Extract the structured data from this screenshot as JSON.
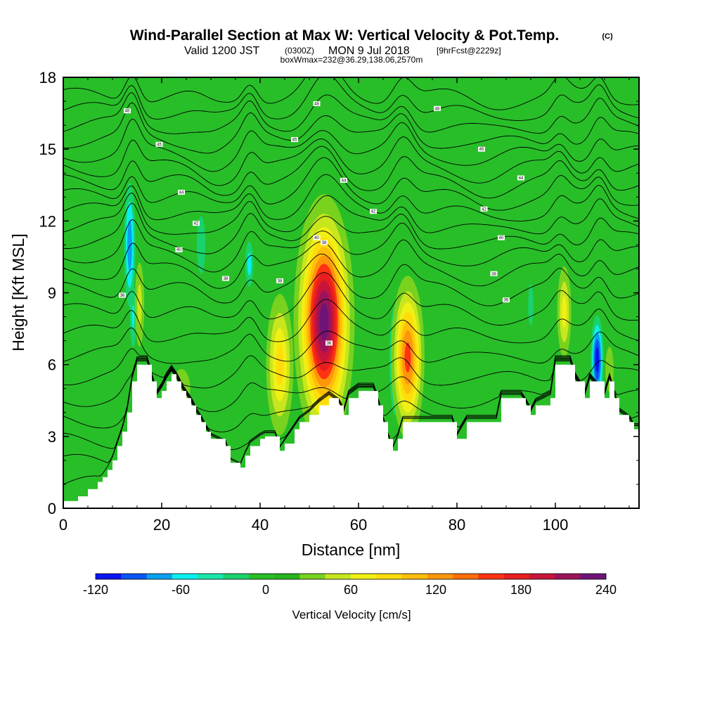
{
  "title": {
    "main": "Wind-Parallel Section at Max W: Vertical Velocity & Pot.Temp.",
    "copyright": "(C)",
    "valid_prefix": "Valid 1200 JST",
    "valid_utc": "(0300Z)",
    "valid_date": "MON 9 Jul 2018",
    "forecast": "[9hrFcst@2229z]",
    "boxinfo": "boxWmax=232@36.29,138.06,2570m"
  },
  "chart_data": {
    "type": "heatmap",
    "xlabel": "Distance [nm]",
    "ylabel": "Height [Kft MSL]",
    "xlim": [
      0,
      117
    ],
    "ylim": [
      0,
      18
    ],
    "x_ticks": [
      0,
      20,
      40,
      60,
      80,
      100
    ],
    "y_ticks": [
      0,
      3,
      6,
      9,
      12,
      15,
      18
    ],
    "grid": false,
    "background_value_cms": 0,
    "colorbar": {
      "title": "Vertical Velocity [cm/s]",
      "ticks": [
        -120,
        -60,
        0,
        60,
        120,
        180,
        240
      ],
      "min": -120,
      "max": 240,
      "bins": [
        -120,
        -100,
        -80,
        -60,
        -40,
        -20,
        0,
        20,
        40,
        60,
        80,
        100,
        120,
        140,
        160,
        180,
        200,
        220,
        240
      ],
      "colors": [
        "#0a14f0",
        "#0a55f5",
        "#0aa0f0",
        "#0af0f0",
        "#19e6aa",
        "#19d26e",
        "#28be28",
        "#28b41e",
        "#78d21e",
        "#c8e61e",
        "#f0f014",
        "#ffdc0a",
        "#ffbe0a",
        "#ff960a",
        "#ff6e0a",
        "#ff3214",
        "#e61e1e",
        "#c8143c",
        "#9b145a",
        "#6e1478"
      ]
    },
    "terrain_kft": [
      {
        "x": 0,
        "h": 0.3
      },
      {
        "x": 3,
        "h": 0.5
      },
      {
        "x": 5,
        "h": 0.8
      },
      {
        "x": 7,
        "h": 1.1
      },
      {
        "x": 8,
        "h": 1.3
      },
      {
        "x": 9,
        "h": 1.6
      },
      {
        "x": 10,
        "h": 2.0
      },
      {
        "x": 11,
        "h": 2.6
      },
      {
        "x": 12,
        "h": 3.2
      },
      {
        "x": 13,
        "h": 4.0
      },
      {
        "x": 14,
        "h": 5.3
      },
      {
        "x": 15,
        "h": 6.0
      },
      {
        "x": 17,
        "h": 6.0
      },
      {
        "x": 18,
        "h": 5.3
      },
      {
        "x": 19,
        "h": 4.6
      },
      {
        "x": 20,
        "h": 4.9
      },
      {
        "x": 21,
        "h": 5.3
      },
      {
        "x": 22,
        "h": 5.6
      },
      {
        "x": 23,
        "h": 5.3
      },
      {
        "x": 24,
        "h": 4.9
      },
      {
        "x": 25,
        "h": 4.6
      },
      {
        "x": 26,
        "h": 4.3
      },
      {
        "x": 27,
        "h": 3.9
      },
      {
        "x": 28,
        "h": 3.6
      },
      {
        "x": 29,
        "h": 3.2
      },
      {
        "x": 30,
        "h": 2.9
      },
      {
        "x": 33,
        "h": 2.6
      },
      {
        "x": 34,
        "h": 1.9
      },
      {
        "x": 36,
        "h": 1.7
      },
      {
        "x": 37,
        "h": 2.2
      },
      {
        "x": 38,
        "h": 2.6
      },
      {
        "x": 40,
        "h": 2.9
      },
      {
        "x": 41,
        "h": 3.0
      },
      {
        "x": 43,
        "h": 3.0
      },
      {
        "x": 44,
        "h": 2.4
      },
      {
        "x": 45,
        "h": 2.7
      },
      {
        "x": 47,
        "h": 3.3
      },
      {
        "x": 48,
        "h": 3.6
      },
      {
        "x": 50,
        "h": 3.9
      },
      {
        "x": 52,
        "h": 4.3
      },
      {
        "x": 54,
        "h": 4.6
      },
      {
        "x": 56,
        "h": 4.3
      },
      {
        "x": 57,
        "h": 3.9
      },
      {
        "x": 58,
        "h": 4.6
      },
      {
        "x": 60,
        "h": 4.9
      },
      {
        "x": 63,
        "h": 4.9
      },
      {
        "x": 64,
        "h": 4.3
      },
      {
        "x": 65,
        "h": 3.6
      },
      {
        "x": 66,
        "h": 2.9
      },
      {
        "x": 67,
        "h": 2.4
      },
      {
        "x": 68,
        "h": 2.9
      },
      {
        "x": 69,
        "h": 3.6
      },
      {
        "x": 72,
        "h": 3.6
      },
      {
        "x": 79,
        "h": 3.6
      },
      {
        "x": 80,
        "h": 2.9
      },
      {
        "x": 82,
        "h": 3.6
      },
      {
        "x": 88,
        "h": 3.6
      },
      {
        "x": 89,
        "h": 4.6
      },
      {
        "x": 93,
        "h": 4.6
      },
      {
        "x": 94,
        "h": 4.3
      },
      {
        "x": 95,
        "h": 3.9
      },
      {
        "x": 96,
        "h": 4.3
      },
      {
        "x": 99,
        "h": 4.6
      },
      {
        "x": 100,
        "h": 6.0
      },
      {
        "x": 103,
        "h": 6.0
      },
      {
        "x": 104,
        "h": 5.3
      },
      {
        "x": 106,
        "h": 4.6
      },
      {
        "x": 107,
        "h": 5.3
      },
      {
        "x": 110,
        "h": 4.6
      },
      {
        "x": 111,
        "h": 5.3
      },
      {
        "x": 112,
        "h": 4.6
      },
      {
        "x": 113,
        "h": 3.9
      },
      {
        "x": 115,
        "h": 3.6
      },
      {
        "x": 116,
        "h": 3.3
      },
      {
        "x": 117,
        "h": 3.3
      }
    ],
    "updrafts": [
      {
        "x": 53,
        "z": 7.8,
        "sx": 2.8,
        "sz": 2.4,
        "w": 232
      },
      {
        "x": 70,
        "z": 6.3,
        "sx": 1.7,
        "sz": 1.7,
        "w": 150
      },
      {
        "x": 44,
        "z": 6.0,
        "sx": 1.6,
        "sz": 1.7,
        "w": 90
      },
      {
        "x": 101.8,
        "z": 8.2,
        "sx": 0.9,
        "sz": 1.2,
        "w": 70
      },
      {
        "x": 15.5,
        "z": 8.5,
        "sx": 0.7,
        "sz": 1.3,
        "w": 50
      },
      {
        "x": 111,
        "z": 5.8,
        "sx": 0.7,
        "sz": 0.8,
        "w": 40
      },
      {
        "x": 24,
        "z": 5.0,
        "sx": 2.2,
        "sz": 1.0,
        "w": 28
      },
      {
        "x": 48,
        "z": 10.0,
        "sx": 2.0,
        "sz": 1.0,
        "w": 20
      }
    ],
    "downdrafts": [
      {
        "x": 108.5,
        "z": 6.2,
        "sx": 0.7,
        "sz": 1.0,
        "w": -115
      },
      {
        "x": 67.5,
        "z": 6.2,
        "sx": 0.8,
        "sz": 1.5,
        "w": -65
      },
      {
        "x": 13.5,
        "z": 11.0,
        "sx": 0.7,
        "sz": 1.6,
        "w": -75
      },
      {
        "x": 37.8,
        "z": 10.2,
        "sx": 0.6,
        "sz": 0.7,
        "w": -50
      },
      {
        "x": 14.2,
        "z": 8.0,
        "sx": 0.5,
        "sz": 1.0,
        "w": -45
      },
      {
        "x": 95,
        "z": 8.5,
        "sx": 0.8,
        "sz": 1.3,
        "w": -25
      },
      {
        "x": 28,
        "z": 11.0,
        "sx": 1.3,
        "sz": 1.8,
        "w": -25
      }
    ],
    "theta_contour_bases_kft": [
      1.0,
      1.9,
      2.8,
      3.7,
      4.6,
      5.5,
      6.4,
      7.3,
      8.2,
      9.1,
      9.9,
      10.6,
      11.2,
      11.8,
      12.4,
      13.0,
      13.6,
      14.2,
      14.8,
      15.4,
      16.0,
      16.6,
      17.2
    ],
    "theta_contour_labels": [
      {
        "x": 12,
        "z": 8.9,
        "text": "36"
      },
      {
        "x": 23.5,
        "z": 10.8,
        "text": "40"
      },
      {
        "x": 33,
        "z": 9.6,
        "text": "38"
      },
      {
        "x": 44,
        "z": 9.5,
        "text": "38"
      },
      {
        "x": 54,
        "z": 6.9,
        "text": "36"
      },
      {
        "x": 27,
        "z": 11.9,
        "text": "42"
      },
      {
        "x": 24,
        "z": 13.2,
        "text": "44"
      },
      {
        "x": 19.5,
        "z": 15.2,
        "text": "45"
      },
      {
        "x": 13,
        "z": 16.6,
        "text": "46"
      },
      {
        "x": 51.5,
        "z": 11.3,
        "text": "40"
      },
      {
        "x": 53,
        "z": 11.1,
        "text": "38"
      },
      {
        "x": 63,
        "z": 12.4,
        "text": "42"
      },
      {
        "x": 57,
        "z": 13.7,
        "text": "44"
      },
      {
        "x": 47,
        "z": 15.4,
        "text": "45"
      },
      {
        "x": 51.5,
        "z": 16.9,
        "text": "48"
      },
      {
        "x": 76,
        "z": 16.7,
        "text": "48"
      },
      {
        "x": 85,
        "z": 15.0,
        "text": "45"
      },
      {
        "x": 85.5,
        "z": 12.5,
        "text": "42"
      },
      {
        "x": 93,
        "z": 13.8,
        "text": "44"
      },
      {
        "x": 89,
        "z": 11.3,
        "text": "40"
      },
      {
        "x": 87.5,
        "z": 9.8,
        "text": "38"
      },
      {
        "x": 90,
        "z": 8.7,
        "text": "36"
      }
    ]
  }
}
